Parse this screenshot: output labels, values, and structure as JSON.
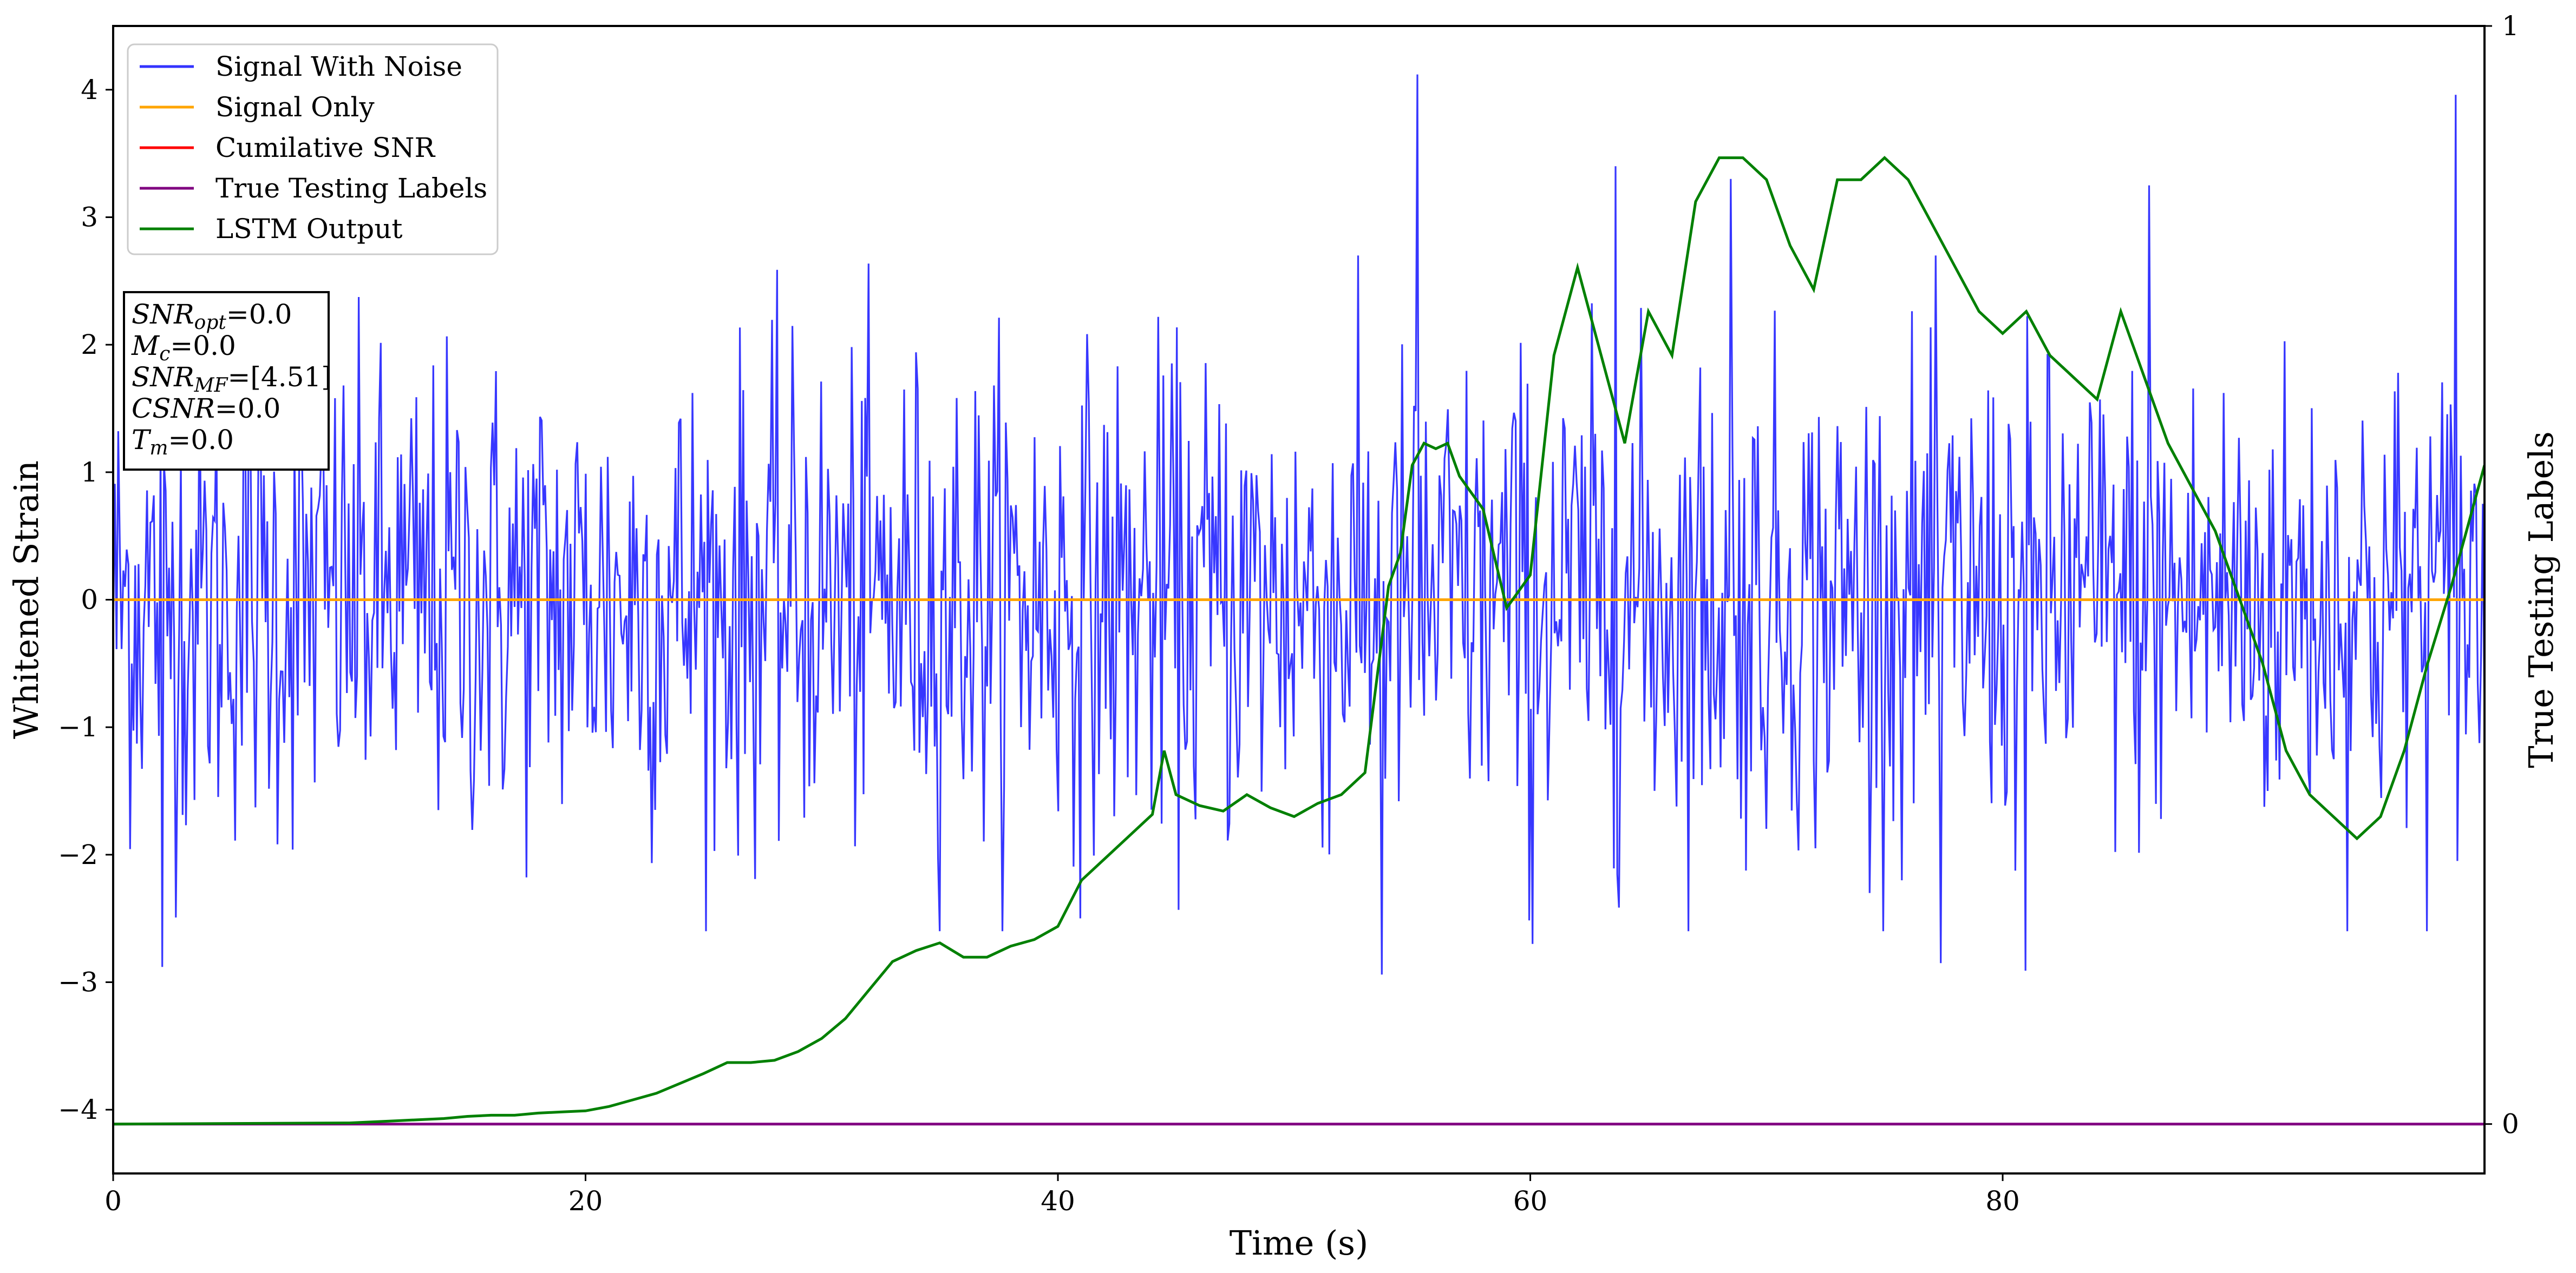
{
  "chart_data": {
    "type": "line",
    "xlabel": "Time (s)",
    "ylabel": "Whitened Strain",
    "ylabel_right": "True Testing Labels",
    "xlim": [
      0,
      100.4
    ],
    "ylim": [
      -4.5,
      4.5
    ],
    "ylim_right": [
      -0.045,
      1.0
    ],
    "x_ticks": [
      0,
      20,
      40,
      60,
      80
    ],
    "y_ticks": [
      -4,
      -3,
      -2,
      -1,
      0,
      1,
      2,
      3,
      4
    ],
    "y_ticks_right": [
      0,
      1
    ],
    "grid": false,
    "legend_position": "top-left",
    "legend": [
      {
        "name": "Signal With Noise",
        "color": "#3333ff"
      },
      {
        "name": "Signal Only",
        "color": "#ffa500"
      },
      {
        "name": "Cumilative SNR",
        "color": "#ff0000"
      },
      {
        "name": "True Testing Labels",
        "color": "#800080"
      },
      {
        "name": "LSTM Output",
        "color": "#008000"
      }
    ],
    "annotation_box": [
      {
        "symbol": "SNR",
        "sub": "opt",
        "value": "=0.0"
      },
      {
        "symbol": "M",
        "sub": "c",
        "value": "=0.0"
      },
      {
        "symbol": "SNR",
        "sub": "MF",
        "value": "=[4.51]"
      },
      {
        "symbol": "CSNR",
        "sub": "",
        "value": "=0.0"
      },
      {
        "symbol": "T",
        "sub": "m",
        "value": "=0.0"
      }
    ],
    "series": [
      {
        "name": "Signal With Noise",
        "axis": "left",
        "style": "gaussian-noise",
        "std": 0.95,
        "count": 1400,
        "spikes": [
          {
            "x": 55.2,
            "y": 4.12
          },
          {
            "x": 99.2,
            "y": 3.96
          },
          {
            "x": 53.7,
            "y": -2.94
          },
          {
            "x": 81.0,
            "y": -2.91
          },
          {
            "x": 2.1,
            "y": -2.88
          },
          {
            "x": 68.5,
            "y": 3.3
          },
          {
            "x": 63.6,
            "y": 3.4
          },
          {
            "x": 86.2,
            "y": 3.25
          },
          {
            "x": 77.4,
            "y": -2.85
          },
          {
            "x": 60.1,
            "y": -2.7
          }
        ]
      },
      {
        "name": "Signal Only",
        "axis": "left",
        "x": [
          0,
          100.4
        ],
        "values": [
          0,
          0
        ]
      },
      {
        "name": "True Testing Labels",
        "axis": "right",
        "x": [
          0,
          100.4
        ],
        "values": [
          0,
          0
        ]
      },
      {
        "name": "LSTM Output",
        "axis": "right",
        "x": [
          0,
          10,
          12,
          14,
          15,
          16,
          17,
          18,
          19,
          20,
          21,
          22,
          23,
          24,
          25,
          26,
          27,
          28,
          29,
          30,
          31,
          32,
          33,
          34,
          35,
          36,
          37,
          38,
          39,
          40,
          41,
          42,
          43,
          44,
          44.5,
          45,
          46,
          47,
          48,
          49,
          50,
          51,
          52,
          53,
          54,
          54.5,
          55,
          55.5,
          56,
          56.5,
          57,
          58,
          59,
          60,
          61,
          62,
          63,
          64,
          65,
          66,
          67,
          68,
          69,
          70,
          71,
          72,
          73,
          74,
          75,
          76,
          77,
          78,
          79,
          80,
          81,
          82,
          83,
          84,
          85,
          86,
          87,
          88,
          89,
          90,
          91,
          92,
          93,
          94,
          95,
          96,
          97,
          97.5,
          98,
          99,
          100.4
        ],
        "values": [
          0,
          0.001,
          0.003,
          0.005,
          0.007,
          0.008,
          0.008,
          0.01,
          0.011,
          0.012,
          0.016,
          0.022,
          0.028,
          0.037,
          0.046,
          0.056,
          0.056,
          0.058,
          0.066,
          0.078,
          0.096,
          0.122,
          0.148,
          0.158,
          0.165,
          0.152,
          0.152,
          0.162,
          0.168,
          0.18,
          0.222,
          0.242,
          0.262,
          0.282,
          0.34,
          0.3,
          0.29,
          0.285,
          0.3,
          0.288,
          0.28,
          0.292,
          0.3,
          0.32,
          0.49,
          0.52,
          0.6,
          0.62,
          0.615,
          0.62,
          0.59,
          0.56,
          0.47,
          0.5,
          0.7,
          0.78,
          0.7,
          0.62,
          0.74,
          0.7,
          0.84,
          0.88,
          0.88,
          0.86,
          0.8,
          0.76,
          0.86,
          0.86,
          0.88,
          0.86,
          0.82,
          0.78,
          0.74,
          0.72,
          0.74,
          0.7,
          0.68,
          0.66,
          0.74,
          0.68,
          0.62,
          0.58,
          0.54,
          0.48,
          0.42,
          0.34,
          0.3,
          0.28,
          0.26,
          0.28,
          0.34,
          0.38,
          0.42,
          0.49,
          0.6
        ]
      }
    ]
  }
}
